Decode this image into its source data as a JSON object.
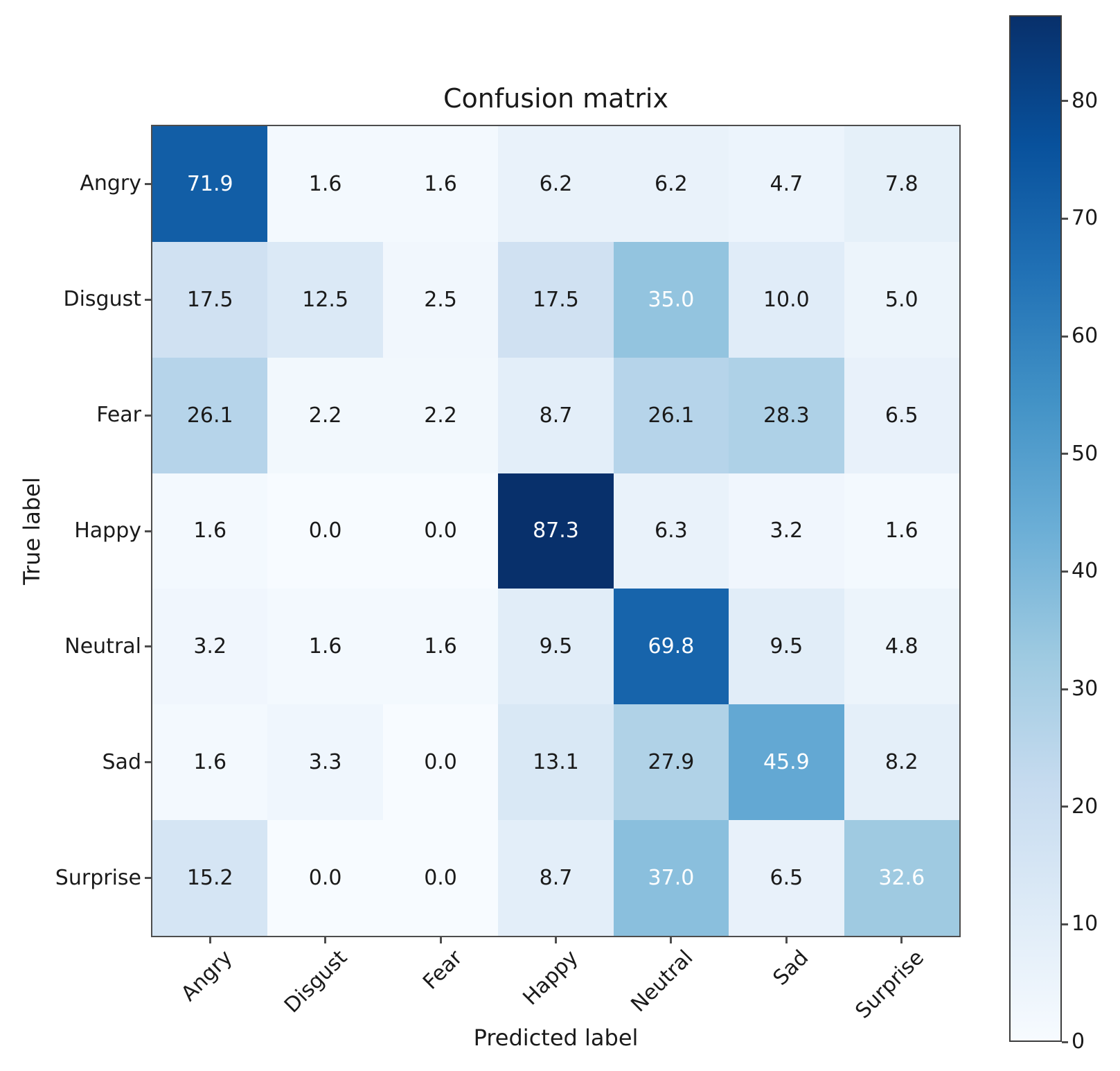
{
  "chart_data": {
    "type": "heatmap",
    "title": "Confusion matrix",
    "xlabel": "Predicted label",
    "ylabel": "True label",
    "x_categories": [
      "Angry",
      "Disgust",
      "Fear",
      "Happy",
      "Neutral",
      "Sad",
      "Surprise"
    ],
    "y_categories": [
      "Angry",
      "Disgust",
      "Fear",
      "Happy",
      "Neutral",
      "Sad",
      "Surprise"
    ],
    "matrix": [
      [
        71.9,
        1.6,
        1.6,
        6.2,
        6.2,
        4.7,
        7.8
      ],
      [
        17.5,
        12.5,
        2.5,
        17.5,
        35.0,
        10.0,
        5.0
      ],
      [
        26.1,
        2.2,
        2.2,
        8.7,
        26.1,
        28.3,
        6.5
      ],
      [
        1.6,
        0.0,
        0.0,
        87.3,
        6.3,
        3.2,
        1.6
      ],
      [
        3.2,
        1.6,
        1.6,
        9.5,
        69.8,
        9.5,
        4.8
      ],
      [
        1.6,
        3.3,
        0.0,
        13.1,
        27.9,
        45.9,
        8.2
      ],
      [
        15.2,
        0.0,
        0.0,
        8.7,
        37.0,
        6.5,
        32.6
      ]
    ],
    "value_decimals": 1,
    "vmin": 0,
    "vmax": 87.3,
    "legend_position": "right-colorbar",
    "grid": false,
    "colorbar_ticks": [
      0,
      10,
      20,
      30,
      40,
      50,
      60,
      70,
      80
    ],
    "colors": {
      "colormap_name": "Blues",
      "colormap_stops": [
        "#f7fbff",
        "#deebf7",
        "#c6dbef",
        "#9ecae1",
        "#6baed6",
        "#4292c6",
        "#2171b5",
        "#08519c",
        "#08306b"
      ],
      "cell_text_dark": "#1a1a1a",
      "cell_text_light": "#ffffff",
      "white_text_threshold": 30,
      "axis_text": "#1a1a1a",
      "spine": "#4d4d4d",
      "background": "#ffffff"
    }
  }
}
